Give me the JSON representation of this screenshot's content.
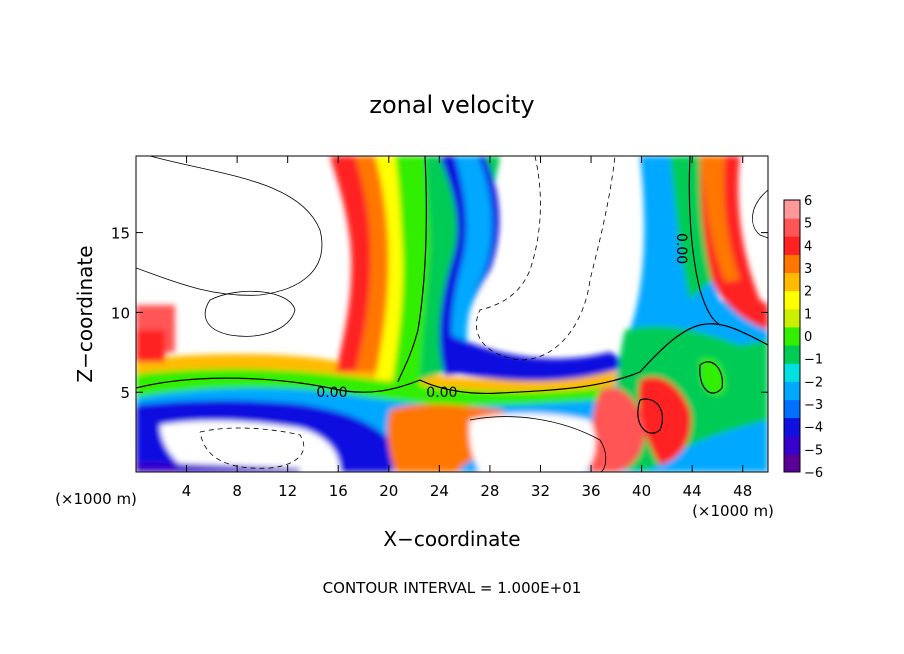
{
  "chart_data": {
    "type": "heatmap",
    "title": "zonal velocity",
    "xlabel": "X−coordinate",
    "ylabel": "Z−coordinate",
    "x_units": "(×1000 m)",
    "y_units": "(×1000 m)",
    "xlim": [
      0,
      50
    ],
    "ylim": [
      0,
      19.8
    ],
    "x_ticks": [
      4,
      8,
      12,
      16,
      20,
      24,
      28,
      32,
      36,
      40,
      44,
      48
    ],
    "y_ticks": [
      5,
      10,
      15
    ],
    "footer": "CONTOUR INTERVAL = 1.000E+01",
    "contour_labels": [
      {
        "text": "0.00",
        "x": 15.5,
        "z": 5.0
      },
      {
        "text": "0.00",
        "x": 24.2,
        "z": 5.0
      },
      {
        "text": "0.00",
        "x": 43.2,
        "z": 14.0
      }
    ],
    "colorbar": {
      "min": -6,
      "max": 6,
      "tick_labels": [
        "6",
        "5",
        "4",
        "3",
        "2",
        "1",
        "0",
        "−1",
        "−2",
        "−3",
        "−4",
        "−5",
        "−6"
      ],
      "colors": [
        "#5a0099",
        "#3800cc",
        "#1010e0",
        "#0070ff",
        "#00a8ff",
        "#00e0e0",
        "#00cc55",
        "#33ee00",
        "#ccee00",
        "#ffff00",
        "#ffbb00",
        "#ff7700",
        "#ff2222",
        "#ff5555",
        "#ff9999"
      ]
    }
  }
}
